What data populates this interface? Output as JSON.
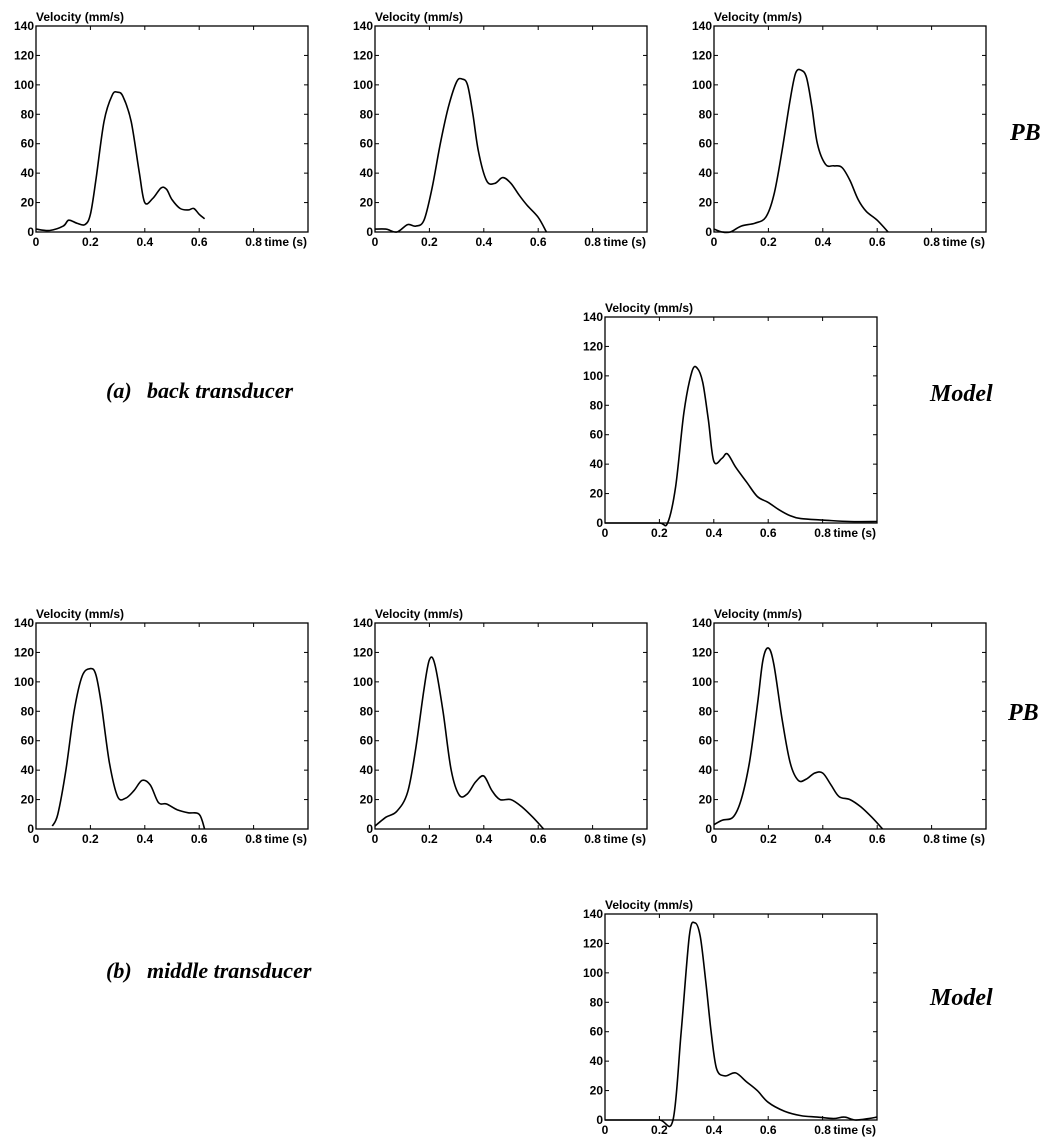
{
  "labels": {
    "section_a": "(a)",
    "section_a_name": "back transducer",
    "section_b": "(b)",
    "section_b_name": "middle transducer",
    "pb_top": "PB",
    "model_top": "Model",
    "pb_bottom": "PB",
    "model_bottom": "Model"
  },
  "chart_data": [
    {
      "id": "a-pb-1",
      "type": "line",
      "ylabel": "Velocity (mm/s)",
      "xlabel": "time (s)",
      "xlim": [
        0,
        1.0
      ],
      "ylim": [
        0,
        140
      ],
      "xticks": [
        0,
        0.2,
        0.4,
        0.6,
        0.8
      ],
      "yticks": [
        0,
        20,
        40,
        60,
        80,
        100,
        120,
        140
      ],
      "xtick_labels": [
        "0",
        "0.2",
        "0.4",
        "0.6",
        "0.8"
      ],
      "ytick_labels": [
        "0",
        "20",
        "40",
        "60",
        "80",
        "100",
        "120",
        "140"
      ],
      "series": [
        {
          "x": [
            0,
            0.05,
            0.1,
            0.12,
            0.15,
            0.18,
            0.2,
            0.22,
            0.25,
            0.28,
            0.3,
            0.32,
            0.35,
            0.38,
            0.4,
            0.43,
            0.46,
            0.48,
            0.5,
            0.53,
            0.56,
            0.58,
            0.6,
            0.62
          ],
          "y": [
            2,
            1,
            4,
            8,
            6,
            5,
            12,
            35,
            75,
            93,
            95,
            92,
            75,
            40,
            20,
            23,
            30,
            29,
            22,
            16,
            15,
            16,
            12,
            9
          ]
        }
      ]
    },
    {
      "id": "a-pb-2",
      "type": "line",
      "ylabel": "Velocity (mm/s)",
      "xlabel": "time (s)",
      "xlim": [
        0,
        1.0
      ],
      "ylim": [
        0,
        140
      ],
      "xticks": [
        0,
        0.2,
        0.4,
        0.6,
        0.8
      ],
      "yticks": [
        0,
        20,
        40,
        60,
        80,
        100,
        120,
        140
      ],
      "xtick_labels": [
        "0",
        "0.2",
        "0.4",
        "0.6",
        "0.8"
      ],
      "ytick_labels": [
        "0",
        "20",
        "40",
        "60",
        "80",
        "100",
        "120",
        "140"
      ],
      "series": [
        {
          "x": [
            0,
            0.04,
            0.08,
            0.12,
            0.15,
            0.18,
            0.21,
            0.24,
            0.27,
            0.3,
            0.32,
            0.34,
            0.36,
            0.38,
            0.41,
            0.44,
            0.47,
            0.5,
            0.53,
            0.56,
            0.6,
            0.63
          ],
          "y": [
            2,
            2,
            0,
            5,
            4,
            8,
            30,
            60,
            85,
            102,
            104,
            100,
            80,
            55,
            35,
            33,
            37,
            33,
            25,
            18,
            10,
            0
          ]
        }
      ]
    },
    {
      "id": "a-pb-3",
      "type": "line",
      "ylabel": "Velocity (mm/s)",
      "xlabel": "time (s)",
      "xlim": [
        0,
        1.0
      ],
      "ylim": [
        0,
        140
      ],
      "xticks": [
        0,
        0.2,
        0.4,
        0.6,
        0.8
      ],
      "yticks": [
        0,
        20,
        40,
        60,
        80,
        100,
        120,
        140
      ],
      "xtick_labels": [
        "0",
        "0.2",
        "0.4",
        "0.6",
        "0.8"
      ],
      "ytick_labels": [
        "0",
        "20",
        "40",
        "60",
        "80",
        "100",
        "120",
        "140"
      ],
      "series": [
        {
          "x": [
            0,
            0.03,
            0.06,
            0.1,
            0.15,
            0.19,
            0.22,
            0.25,
            0.28,
            0.3,
            0.32,
            0.34,
            0.36,
            0.38,
            0.41,
            0.44,
            0.47,
            0.5,
            0.53,
            0.56,
            0.6,
            0.64
          ],
          "y": [
            2,
            0,
            0,
            4,
            6,
            10,
            25,
            55,
            90,
            108,
            110,
            105,
            85,
            60,
            46,
            45,
            44,
            35,
            22,
            14,
            8,
            0
          ]
        }
      ]
    },
    {
      "id": "a-model",
      "type": "line",
      "ylabel": "Velocity (mm/s)",
      "xlabel": "time (s)",
      "xlim": [
        0,
        1.0
      ],
      "ylim": [
        0,
        140
      ],
      "xticks": [
        0,
        0.2,
        0.4,
        0.6,
        0.8
      ],
      "yticks": [
        0,
        20,
        40,
        60,
        80,
        100,
        120,
        140
      ],
      "xtick_labels": [
        "0",
        "0.2",
        "0.4",
        "0.6",
        "0.8"
      ],
      "ytick_labels": [
        "0",
        "20",
        "40",
        "60",
        "80",
        "100",
        "120",
        "140"
      ],
      "series": [
        {
          "x": [
            0,
            0.1,
            0.2,
            0.23,
            0.26,
            0.29,
            0.32,
            0.34,
            0.36,
            0.38,
            0.4,
            0.43,
            0.45,
            0.48,
            0.52,
            0.56,
            0.6,
            0.64,
            0.68,
            0.72,
            0.8,
            0.9,
            1.0
          ],
          "y": [
            0,
            0,
            0,
            0,
            25,
            75,
            103,
            105,
            95,
            70,
            42,
            44,
            47,
            38,
            28,
            18,
            14,
            9,
            5,
            3,
            2,
            1,
            1
          ]
        }
      ]
    },
    {
      "id": "b-pb-1",
      "type": "line",
      "ylabel": "Velocity (mm/s)",
      "xlabel": "time (s)",
      "xlim": [
        0,
        1.0
      ],
      "ylim": [
        0,
        140
      ],
      "xticks": [
        0,
        0.2,
        0.4,
        0.6,
        0.8
      ],
      "yticks": [
        0,
        20,
        40,
        60,
        80,
        100,
        120,
        140
      ],
      "xtick_labels": [
        "0",
        "0.2",
        "0.4",
        "0.6",
        "0.8"
      ],
      "ytick_labels": [
        "0",
        "20",
        "40",
        "60",
        "80",
        "100",
        "120",
        "140"
      ],
      "series": [
        {
          "x": [
            0.06,
            0.08,
            0.11,
            0.14,
            0.17,
            0.2,
            0.22,
            0.24,
            0.27,
            0.3,
            0.33,
            0.36,
            0.39,
            0.42,
            0.45,
            0.48,
            0.52,
            0.56,
            0.6,
            0.62
          ],
          "y": [
            2,
            10,
            40,
            80,
            104,
            109,
            105,
            85,
            45,
            22,
            21,
            26,
            33,
            30,
            18,
            17,
            13,
            11,
            10,
            0
          ]
        }
      ]
    },
    {
      "id": "b-pb-2",
      "type": "line",
      "ylabel": "Velocity (mm/s)",
      "xlabel": "time (s)",
      "xlim": [
        0,
        1.0
      ],
      "ylim": [
        0,
        140
      ],
      "xticks": [
        0,
        0.2,
        0.4,
        0.6,
        0.8
      ],
      "yticks": [
        0,
        20,
        40,
        60,
        80,
        100,
        120,
        140
      ],
      "xtick_labels": [
        "0",
        "0.2",
        "0.4",
        "0.6",
        "0.8"
      ],
      "ytick_labels": [
        "0",
        "20",
        "40",
        "60",
        "80",
        "100",
        "120",
        "140"
      ],
      "series": [
        {
          "x": [
            0,
            0.04,
            0.08,
            0.12,
            0.15,
            0.18,
            0.2,
            0.22,
            0.25,
            0.28,
            0.31,
            0.34,
            0.37,
            0.4,
            0.43,
            0.46,
            0.5,
            0.54,
            0.58,
            0.62
          ],
          "y": [
            2,
            8,
            12,
            25,
            55,
            95,
            115,
            112,
            80,
            40,
            23,
            24,
            32,
            36,
            26,
            20,
            20,
            15,
            8,
            0
          ]
        }
      ]
    },
    {
      "id": "b-pb-3",
      "type": "line",
      "ylabel": "Velocity (mm/s)",
      "xlabel": "time (s)",
      "xlim": [
        0,
        1.0
      ],
      "ylim": [
        0,
        140
      ],
      "xticks": [
        0,
        0.2,
        0.4,
        0.6,
        0.8
      ],
      "yticks": [
        0,
        20,
        40,
        60,
        80,
        100,
        120,
        140
      ],
      "xtick_labels": [
        "0",
        "0.2",
        "0.4",
        "0.6",
        "0.8"
      ],
      "ytick_labels": [
        "0",
        "20",
        "40",
        "60",
        "80",
        "100",
        "120",
        "140"
      ],
      "series": [
        {
          "x": [
            0,
            0.03,
            0.07,
            0.1,
            0.13,
            0.16,
            0.18,
            0.2,
            0.22,
            0.25,
            0.28,
            0.31,
            0.34,
            0.37,
            0.4,
            0.43,
            0.46,
            0.5,
            0.54,
            0.58,
            0.62
          ],
          "y": [
            3,
            6,
            8,
            20,
            45,
            85,
            115,
            123,
            112,
            75,
            45,
            33,
            34,
            38,
            38,
            30,
            22,
            20,
            15,
            8,
            0
          ]
        }
      ]
    },
    {
      "id": "b-model",
      "type": "line",
      "ylabel": "Velocity (mm/s)",
      "xlabel": "time (s)",
      "xlim": [
        0,
        1.0
      ],
      "ylim": [
        0,
        140
      ],
      "xticks": [
        0,
        0.2,
        0.4,
        0.6,
        0.8
      ],
      "yticks": [
        0,
        20,
        40,
        60,
        80,
        100,
        120,
        140
      ],
      "xtick_labels": [
        "0",
        "0.2",
        "0.4",
        "0.6",
        "0.8"
      ],
      "ytick_labels": [
        "0",
        "20",
        "40",
        "60",
        "80",
        "100",
        "120",
        "140"
      ],
      "series": [
        {
          "x": [
            0,
            0.1,
            0.2,
            0.25,
            0.28,
            0.31,
            0.33,
            0.35,
            0.37,
            0.39,
            0.41,
            0.44,
            0.48,
            0.52,
            0.56,
            0.6,
            0.66,
            0.72,
            0.78,
            0.84,
            0.88,
            0.92,
            0.97,
            1.0
          ],
          "y": [
            0,
            0,
            0,
            0,
            60,
            125,
            134,
            125,
            95,
            60,
            35,
            30,
            32,
            26,
            20,
            12,
            6,
            3,
            2,
            1,
            2,
            0,
            1,
            2
          ]
        }
      ]
    }
  ]
}
